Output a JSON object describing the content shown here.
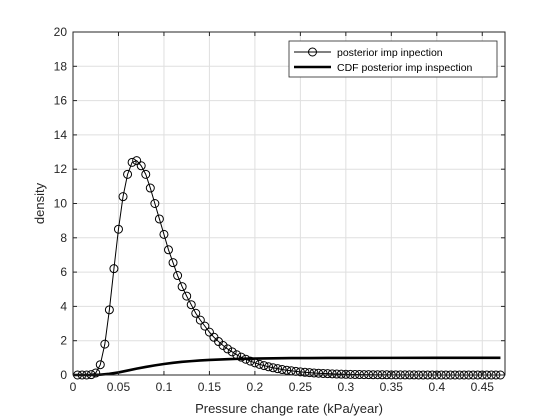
{
  "chart_data": {
    "type": "line",
    "xlabel": "Pressure change rate (kPa/year)",
    "ylabel": "density",
    "xlim": [
      0,
      0.475
    ],
    "ylim": [
      0,
      20
    ],
    "xticks": [
      0,
      0.05,
      0.1,
      0.15,
      0.2,
      0.25,
      0.3,
      0.35,
      0.4,
      0.45
    ],
    "xtick_labels": [
      "0",
      "0.05",
      "0.1",
      "0.15",
      "0.2",
      "0.25",
      "0.3",
      "0.35",
      "0.4",
      "0.45"
    ],
    "yticks": [
      0,
      2,
      4,
      6,
      8,
      10,
      12,
      14,
      16,
      18,
      20
    ],
    "ytick_labels": [
      "0",
      "2",
      "4",
      "6",
      "8",
      "10",
      "12",
      "14",
      "16",
      "18",
      "20"
    ],
    "grid": true,
    "legend_position": "top-right",
    "series": [
      {
        "name": "posterior  imp inpection",
        "style": "thin-line-circle-markers",
        "color": "#000000",
        "x": [
          0.005,
          0.01,
          0.015,
          0.02,
          0.025,
          0.03,
          0.035,
          0.04,
          0.045,
          0.05,
          0.055,
          0.06,
          0.065,
          0.07,
          0.075,
          0.08,
          0.085,
          0.09,
          0.095,
          0.1,
          0.105,
          0.11,
          0.115,
          0.12,
          0.125,
          0.13,
          0.135,
          0.14,
          0.145,
          0.15,
          0.155,
          0.16,
          0.165,
          0.17,
          0.175,
          0.18,
          0.185,
          0.19,
          0.195,
          0.2,
          0.205,
          0.21,
          0.215,
          0.22,
          0.225,
          0.23,
          0.235,
          0.24,
          0.245,
          0.25,
          0.255,
          0.26,
          0.265,
          0.27,
          0.275,
          0.28,
          0.285,
          0.29,
          0.295,
          0.3,
          0.305,
          0.31,
          0.315,
          0.32,
          0.325,
          0.33,
          0.335,
          0.34,
          0.345,
          0.35,
          0.355,
          0.36,
          0.365,
          0.37,
          0.375,
          0.38,
          0.385,
          0.39,
          0.395,
          0.4,
          0.405,
          0.41,
          0.415,
          0.42,
          0.425,
          0.43,
          0.435,
          0.44,
          0.445,
          0.45,
          0.455,
          0.46,
          0.465,
          0.47
        ],
        "values": [
          0.0,
          0.0,
          0.0,
          0.02,
          0.12,
          0.6,
          1.8,
          3.8,
          6.2,
          8.5,
          10.4,
          11.7,
          12.4,
          12.5,
          12.2,
          11.7,
          10.9,
          10.0,
          9.1,
          8.2,
          7.3,
          6.55,
          5.8,
          5.15,
          4.6,
          4.1,
          3.6,
          3.2,
          2.85,
          2.5,
          2.2,
          1.95,
          1.72,
          1.52,
          1.35,
          1.18,
          1.04,
          0.92,
          0.81,
          0.71,
          0.62,
          0.55,
          0.48,
          0.42,
          0.37,
          0.32,
          0.28,
          0.245,
          0.21,
          0.185,
          0.16,
          0.14,
          0.12,
          0.105,
          0.09,
          0.078,
          0.068,
          0.058,
          0.05,
          0.043,
          0.037,
          0.032,
          0.027,
          0.023,
          0.02,
          0.017,
          0.015,
          0.013,
          0.011,
          0.009,
          0.008,
          0.007,
          0.006,
          0.005,
          0.004,
          0.0035,
          0.003,
          0.0025,
          0.002,
          0.0018,
          0.0015,
          0.0013,
          0.0011,
          0.001,
          0.0008,
          0.0007,
          0.0006,
          0.0005,
          0.0004,
          0.0004,
          0.0003,
          0.0003,
          0.0002,
          0.0002
        ]
      },
      {
        "name": "CDF posterior imp inspection",
        "style": "thick-line",
        "color": "#000000",
        "x": [
          0.0,
          0.02,
          0.03,
          0.04,
          0.05,
          0.06,
          0.07,
          0.08,
          0.09,
          0.1,
          0.11,
          0.12,
          0.13,
          0.14,
          0.15,
          0.16,
          0.17,
          0.18,
          0.19,
          0.2,
          0.22,
          0.24,
          0.26,
          0.28,
          0.3,
          0.35,
          0.4,
          0.45,
          0.47
        ],
        "values": [
          0.0,
          0.0,
          0.02,
          0.07,
          0.15,
          0.26,
          0.37,
          0.47,
          0.56,
          0.64,
          0.71,
          0.77,
          0.81,
          0.85,
          0.88,
          0.9,
          0.92,
          0.94,
          0.95,
          0.96,
          0.975,
          0.985,
          0.99,
          0.993,
          0.996,
          0.999,
          1.0,
          1.0,
          1.0
        ]
      }
    ]
  }
}
